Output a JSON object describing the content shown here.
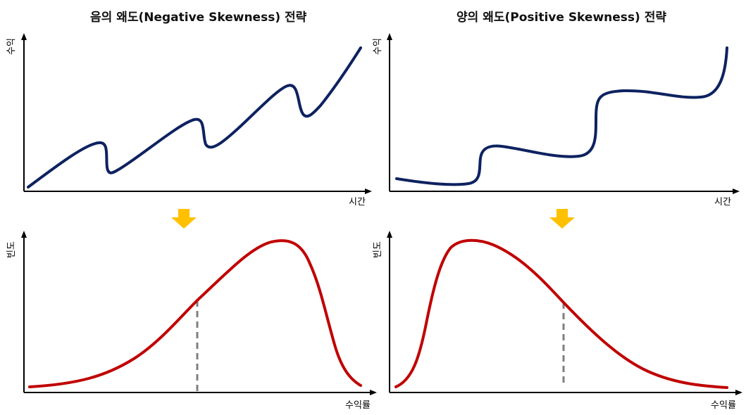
{
  "left": {
    "title": "음의 왜도(Negative Skewness) 전략",
    "top_chart": {
      "ylabel": "수익",
      "xlabel": "시간"
    },
    "bottom_chart": {
      "ylabel": "빈도",
      "xlabel": "수익률"
    }
  },
  "right": {
    "title": "양의 왜도(Positive Skewness) 전략",
    "top_chart": {
      "ylabel": "수익",
      "xlabel": "시간"
    },
    "bottom_chart": {
      "ylabel": "빈도",
      "xlabel": "수익률"
    }
  },
  "colors": {
    "return_curve": "#0d2260",
    "distribution_curve": "#c00000",
    "arrow": "#ffc000",
    "dashed_line": "#7f7f7f",
    "axis": "#000000"
  }
}
